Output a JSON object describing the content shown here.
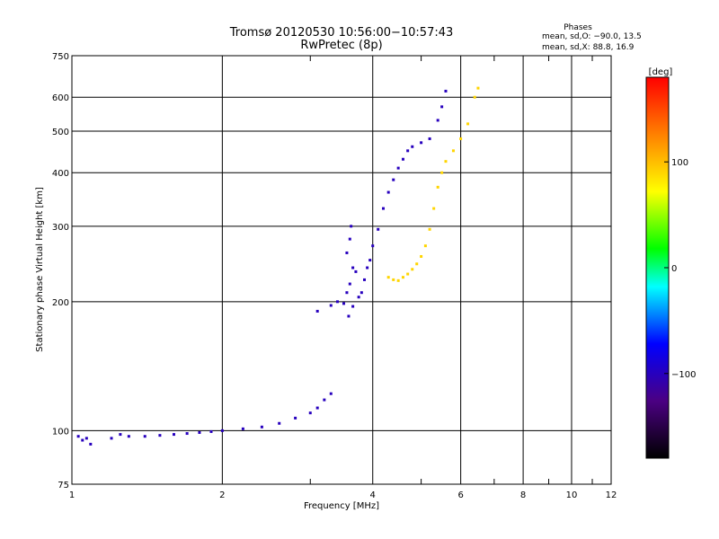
{
  "chart_data": {
    "type": "scatter",
    "title": "Tromsø 20120530 10:56:00−10:57:43",
    "subtitle": "RwPretec (8p)",
    "xlabel": "Frequency [MHz]",
    "ylabel": "Stationary phase Virtual Height [km]",
    "xscale": "log",
    "yscale": "log",
    "xlim": [
      1,
      12
    ],
    "ylim": [
      75,
      750
    ],
    "xticks": [
      1,
      2,
      4,
      6,
      8,
      10,
      12
    ],
    "xtick_labels": [
      "1",
      "2",
      "4",
      "6",
      "8",
      "10",
      "12"
    ],
    "yticks": [
      75,
      100,
      200,
      300,
      400,
      500,
      600,
      750
    ],
    "ytick_labels": [
      "75",
      "100",
      "200",
      "300",
      "400",
      "500",
      "600",
      "750"
    ],
    "grid": true,
    "stats": {
      "heading": "Phases",
      "line_o": "mean, sd,O: −90.0, 13.5",
      "line_x": "mean, sd,X:  88.8, 16.9"
    },
    "colorbar": {
      "label": "[deg]",
      "range": [
        -180,
        180
      ],
      "ticks": [
        100,
        0,
        -100
      ],
      "tick_labels": [
        "100",
        "0",
        "−100"
      ]
    },
    "series": [
      {
        "mode": "O",
        "phase_deg": -100,
        "points": [
          [
            1.03,
            97
          ],
          [
            1.05,
            95
          ],
          [
            1.07,
            96
          ],
          [
            1.09,
            93
          ],
          [
            1.2,
            96
          ],
          [
            1.25,
            98
          ],
          [
            1.3,
            97
          ],
          [
            1.4,
            97
          ],
          [
            1.5,
            97.5
          ],
          [
            1.6,
            98
          ],
          [
            1.7,
            98.5
          ],
          [
            1.8,
            99
          ],
          [
            1.9,
            99.5
          ],
          [
            2.0,
            100
          ],
          [
            2.2,
            101
          ],
          [
            2.4,
            102
          ],
          [
            2.6,
            104
          ],
          [
            2.8,
            107
          ],
          [
            3.0,
            110
          ],
          [
            3.1,
            113
          ],
          [
            3.2,
            118
          ],
          [
            3.3,
            122
          ],
          [
            3.1,
            190
          ],
          [
            3.3,
            196
          ],
          [
            3.4,
            200
          ],
          [
            3.5,
            198
          ],
          [
            3.55,
            210
          ],
          [
            3.6,
            220
          ],
          [
            3.65,
            240
          ],
          [
            3.7,
            235
          ],
          [
            3.55,
            260
          ],
          [
            3.6,
            280
          ],
          [
            3.62,
            300
          ],
          [
            3.58,
            185
          ],
          [
            3.65,
            195
          ],
          [
            3.75,
            205
          ],
          [
            3.8,
            210
          ],
          [
            3.85,
            225
          ],
          [
            3.9,
            240
          ],
          [
            3.95,
            250
          ],
          [
            4.0,
            270
          ],
          [
            4.1,
            295
          ],
          [
            4.2,
            330
          ],
          [
            4.3,
            360
          ],
          [
            4.4,
            385
          ],
          [
            4.5,
            410
          ],
          [
            4.6,
            430
          ],
          [
            4.7,
            450
          ],
          [
            4.8,
            460
          ],
          [
            5.0,
            470
          ],
          [
            5.2,
            480
          ],
          [
            5.4,
            530
          ],
          [
            5.5,
            570
          ],
          [
            5.6,
            620
          ]
        ]
      },
      {
        "mode": "X",
        "phase_deg": 90,
        "points": [
          [
            4.3,
            228
          ],
          [
            4.4,
            225
          ],
          [
            4.5,
            224
          ],
          [
            4.6,
            228
          ],
          [
            4.7,
            232
          ],
          [
            4.8,
            238
          ],
          [
            4.9,
            245
          ],
          [
            5.0,
            255
          ],
          [
            5.1,
            270
          ],
          [
            5.2,
            295
          ],
          [
            5.3,
            330
          ],
          [
            5.4,
            370
          ],
          [
            5.5,
            400
          ],
          [
            5.6,
            425
          ],
          [
            5.8,
            450
          ],
          [
            6.0,
            480
          ],
          [
            6.2,
            520
          ],
          [
            6.4,
            600
          ],
          [
            6.5,
            630
          ]
        ]
      }
    ]
  }
}
